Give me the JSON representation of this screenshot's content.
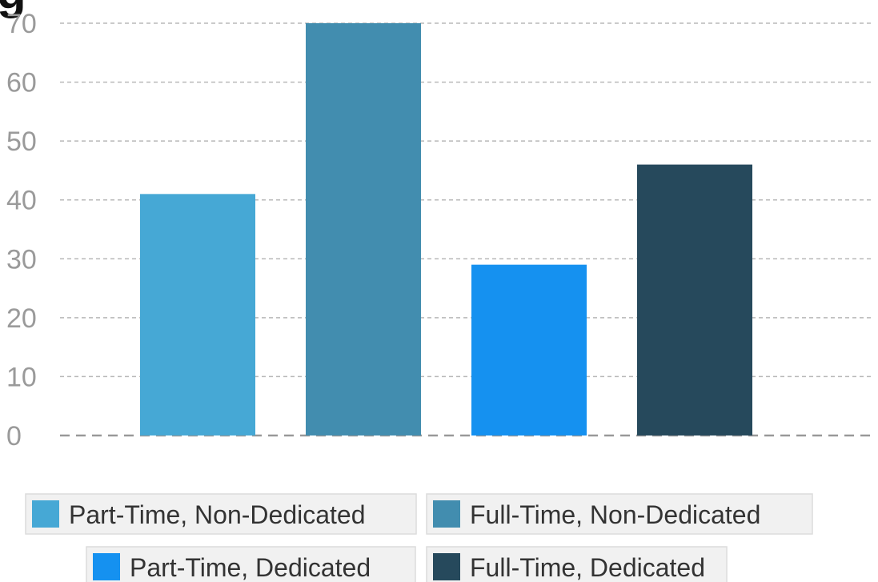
{
  "title_fragment": "g",
  "chart_data": {
    "type": "bar",
    "categories": [
      "Part-Time, Non-Dedicated",
      "Full-Time, Non-Dedicated",
      "Part-Time, Dedicated",
      "Full-Time, Dedicated"
    ],
    "values": [
      41,
      70,
      29,
      46
    ],
    "colors": [
      "#46a8d5",
      "#428daf",
      "#1591f0",
      "#26495c"
    ],
    "ylim": [
      0,
      70
    ],
    "yticks": [
      0,
      10,
      20,
      30,
      40,
      50,
      60,
      70
    ],
    "grid": true,
    "legend": {
      "placement": "bottom",
      "entries": [
        {
          "label": "Part-Time, Non-Dedicated",
          "color": "#46a8d5"
        },
        {
          "label": "Full-Time, Non-Dedicated",
          "color": "#428daf"
        },
        {
          "label": "Part-Time, Dedicated",
          "color": "#1591f0"
        },
        {
          "label": "Full-Time, Dedicated",
          "color": "#26495c"
        }
      ]
    }
  }
}
